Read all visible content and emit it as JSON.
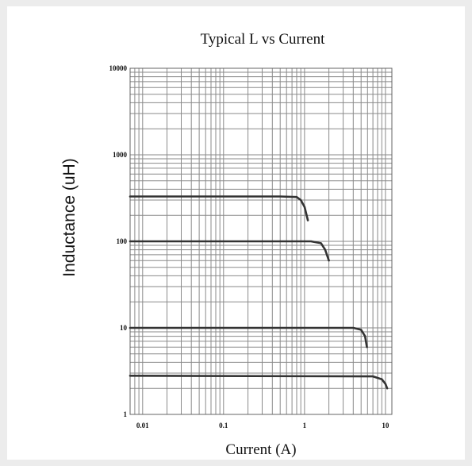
{
  "chart_data": {
    "type": "line",
    "title": "Typical L vs Current",
    "xlabel": "Current (A)",
    "ylabel": "Inductance (uH)",
    "x_scale": "log",
    "y_scale": "log",
    "xlim": [
      0.007,
      12
    ],
    "ylim": [
      1,
      10000
    ],
    "x_ticks": [
      {
        "value": 0.01,
        "label": "0.01"
      },
      {
        "value": 0.1,
        "label": "0.1"
      },
      {
        "value": 1,
        "label": "1"
      },
      {
        "value": 10,
        "label": "10"
      }
    ],
    "y_ticks": [
      {
        "value": 1,
        "label": "1"
      },
      {
        "value": 10,
        "label": "10"
      },
      {
        "value": 100,
        "label": "100"
      },
      {
        "value": 1000,
        "label": "1000"
      },
      {
        "value": 10000,
        "label": "10000"
      }
    ],
    "grid": true,
    "series": [
      {
        "values": [
          {
            "x": 0.007,
            "y": 330
          },
          {
            "x": 0.5,
            "y": 330
          },
          {
            "x": 0.8,
            "y": 325
          },
          {
            "x": 0.9,
            "y": 300
          },
          {
            "x": 1.0,
            "y": 250
          },
          {
            "x": 1.1,
            "y": 175
          }
        ]
      },
      {
        "values": [
          {
            "x": 0.007,
            "y": 100
          },
          {
            "x": 1.2,
            "y": 100
          },
          {
            "x": 1.6,
            "y": 95
          },
          {
            "x": 1.8,
            "y": 80
          },
          {
            "x": 2.0,
            "y": 60
          }
        ]
      },
      {
        "values": [
          {
            "x": 0.007,
            "y": 10
          },
          {
            "x": 4.0,
            "y": 10
          },
          {
            "x": 5.0,
            "y": 9.5
          },
          {
            "x": 5.6,
            "y": 8
          },
          {
            "x": 5.9,
            "y": 6
          }
        ]
      },
      {
        "values": [
          {
            "x": 0.007,
            "y": 2.8
          },
          {
            "x": 7.0,
            "y": 2.75
          },
          {
            "x": 9.0,
            "y": 2.55
          },
          {
            "x": 10.0,
            "y": 2.25
          },
          {
            "x": 10.5,
            "y": 2.0
          }
        ]
      }
    ]
  }
}
